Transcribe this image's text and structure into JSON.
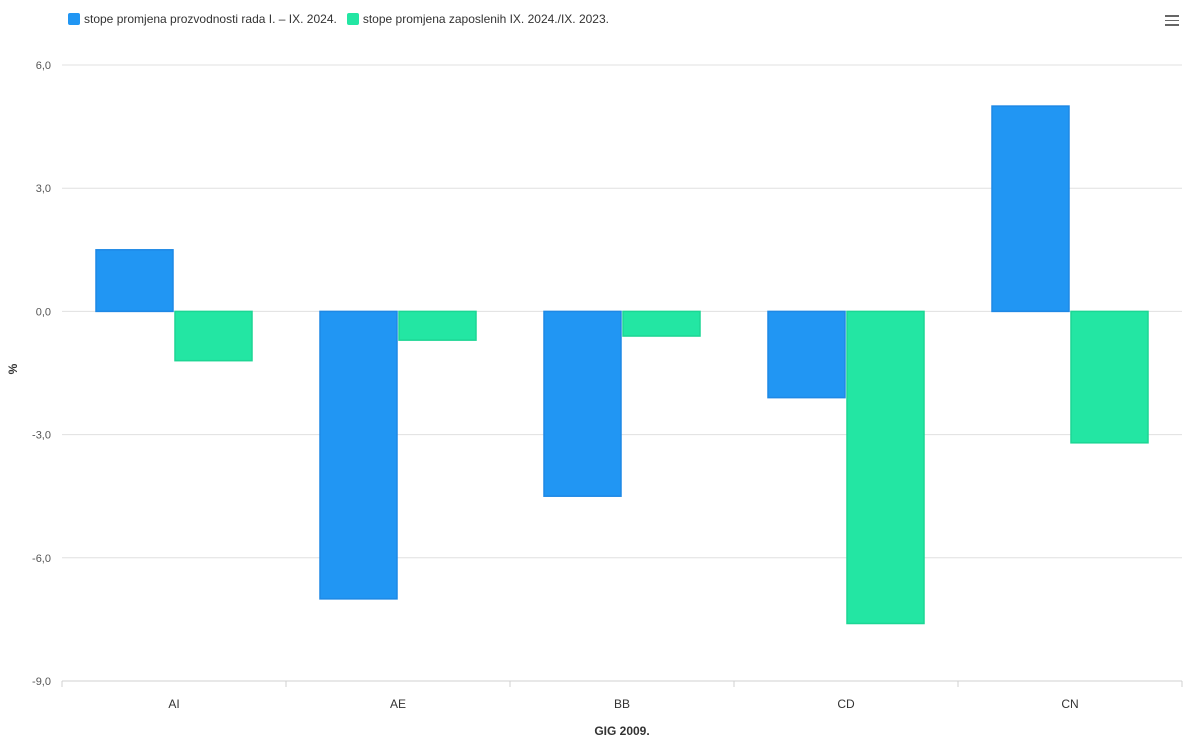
{
  "colors": {
    "series1": "#2196f3",
    "series2": "#23e6a3",
    "series1_border": "#1e88e5",
    "series2_border": "#1cd694",
    "grid": "#e0e0e0",
    "axis": "#d0d0d0"
  },
  "menu": {
    "icon": "hamburger-menu-icon"
  },
  "chart_data": {
    "type": "bar",
    "categories": [
      "AI",
      "AE",
      "BB",
      "CD",
      "CN"
    ],
    "series": [
      {
        "name": "stope promjena prozvodnosti rada I. – IX. 2024.",
        "values": [
          1.5,
          -7.0,
          -4.5,
          -2.1,
          5.0
        ]
      },
      {
        "name": "stope promjena zaposlenih IX. 2024./IX. 2023.",
        "values": [
          -1.2,
          -0.7,
          -0.6,
          -7.6,
          -3.2
        ]
      }
    ],
    "ylim": [
      -9,
      6
    ],
    "yticks": [
      "6,0",
      "3,0",
      "0,0",
      "-3,0",
      "-6,0",
      "-9,0"
    ],
    "ylabel": "%",
    "xlabel": "GIG 2009.",
    "legend_position": "top-left",
    "grid": true
  }
}
